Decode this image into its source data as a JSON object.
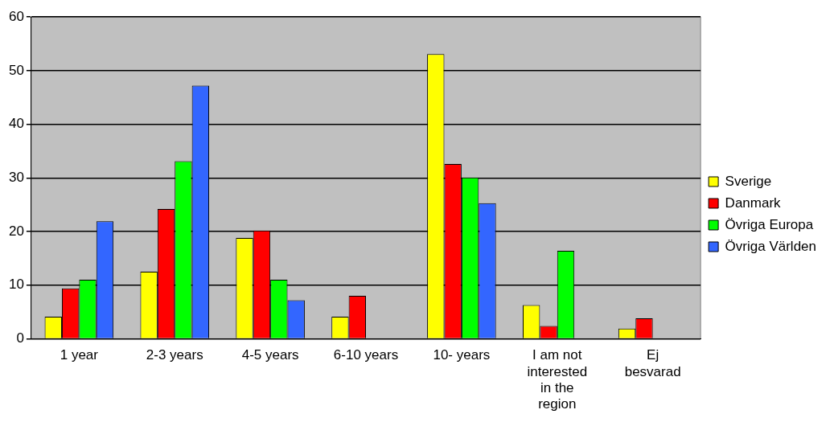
{
  "chart_data": {
    "type": "bar",
    "categories": [
      "1 year",
      "2-3 years",
      "4-5 years",
      "6-10 years",
      "10- years",
      "I am  not interested in the region",
      "Ej besvarad"
    ],
    "series": [
      {
        "name": "Sverige",
        "color": "#ffff00",
        "values": [
          4.1,
          12.5,
          18.8,
          4.1,
          53.1,
          6.3,
          1.9
        ]
      },
      {
        "name": "Danmark",
        "color": "#ff0000",
        "values": [
          9.4,
          24.2,
          20.2,
          8.0,
          32.6,
          2.4,
          3.8
        ]
      },
      {
        "name": "Övriga Europa",
        "color": "#00ff00",
        "values": [
          11.0,
          33.1,
          11.0,
          0,
          30.1,
          16.4,
          0
        ]
      },
      {
        "name": "Övriga Världen",
        "color": "#3366ff",
        "values": [
          21.9,
          47.2,
          7.2,
          0,
          25.3,
          0,
          0
        ]
      }
    ],
    "ylim": [
      0,
      60
    ],
    "yticks": [
      0,
      10,
      20,
      30,
      40,
      50,
      60
    ],
    "grid": "y",
    "legend": "right"
  }
}
